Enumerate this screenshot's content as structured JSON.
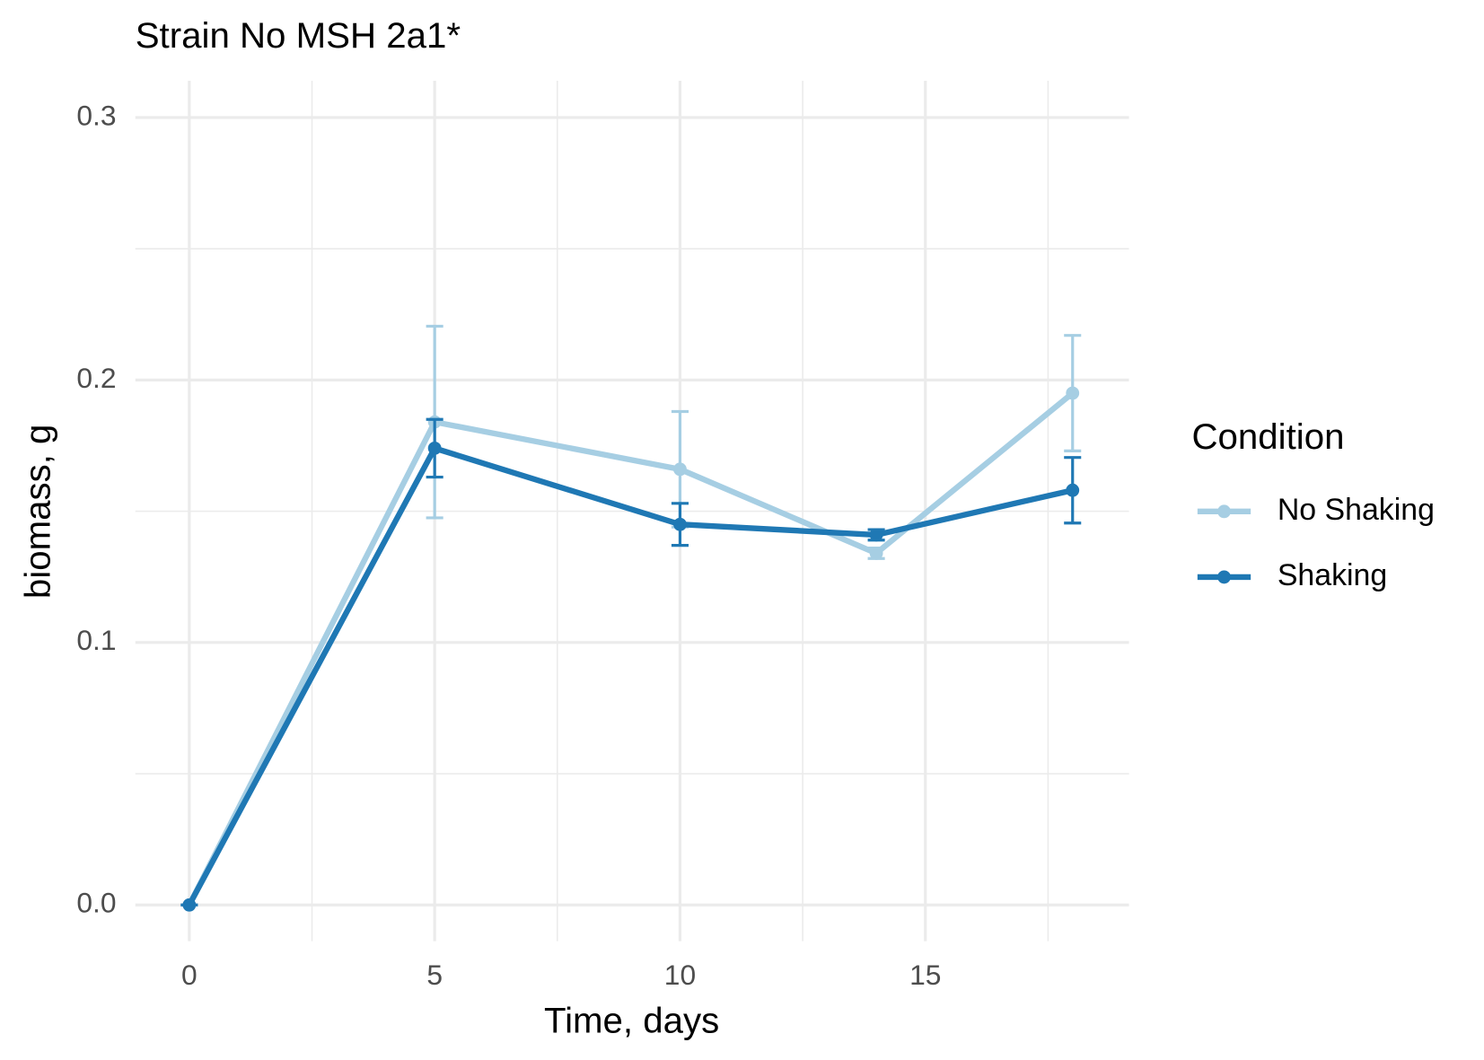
{
  "chart_data": {
    "type": "line",
    "title": "Strain No  MSH 2a1*",
    "x_label": "Time, days",
    "y_label": "biomass, g",
    "legend_title": "Condition",
    "legend_position": "right",
    "grid": true,
    "x": [
      0,
      5,
      10,
      14,
      18
    ],
    "series": [
      {
        "name": "No Shaking",
        "color": "#a6cee3",
        "values": [
          0,
          0.184,
          0.166,
          0.134,
          0.195
        ],
        "errors": [
          0,
          0.0365,
          0.022,
          0.002,
          0.022
        ]
      },
      {
        "name": "Shaking",
        "color": "#1f78b4",
        "values": [
          0,
          0.174,
          0.145,
          0.141,
          0.158
        ],
        "errors": [
          0,
          0.011,
          0.008,
          0.002,
          0.0125
        ]
      }
    ],
    "xlim": [
      -1.1,
      19.15
    ],
    "xticks": [
      0,
      5,
      10,
      15
    ],
    "ylim": [
      -0.0138,
      0.314
    ],
    "yticks": [
      {
        "value": 0,
        "label": "0.0"
      },
      0.1,
      0.2,
      0.3
    ]
  }
}
